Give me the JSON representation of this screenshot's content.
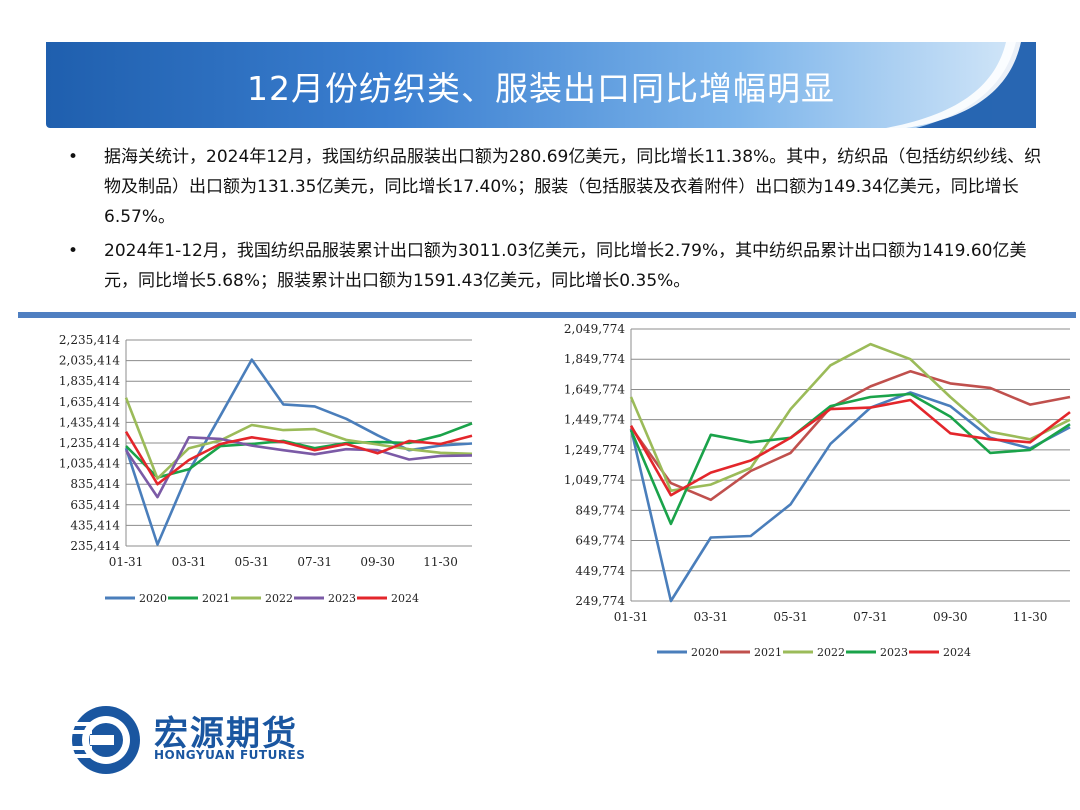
{
  "header": {
    "title": "12月份纺织类、服装出口同比增幅明显"
  },
  "bullets": [
    {
      "marker": "•",
      "text": "据海关统计，2024年12月，我国纺织品服装出口额为280.69亿美元，同比增长11.38%。其中，纺织品（包括纺织纱线、织物及制品）出口额为131.35亿美元，同比增长17.40%；服装（包括服装及衣着附件）出口额为149.34亿美元，同比增长6.57%。"
    },
    {
      "marker": "•",
      "text": "2024年1-12月，我国纺织品服装累计出口额为3011.03亿美元，同比增长2.79%，其中纺织品累计出口额为1419.60亿美元，同比增长5.68%；服装累计出口额为1591.43亿美元，同比增长0.35%。"
    }
  ],
  "logo": {
    "name": "宏源期货",
    "sub": "HONGYUAN FUTURES"
  },
  "colors": {
    "banner": "#1f5fae",
    "divider": "#4f7fc1",
    "brand": "#1a56a0"
  },
  "chart_data": [
    {
      "type": "line",
      "title": "",
      "xlabel": "",
      "ylabel": "",
      "x_ticks": [
        "01-31",
        "03-31",
        "05-31",
        "07-31",
        "09-30",
        "11-30"
      ],
      "y_ticks": [
        "2,235,414",
        "2,035,414",
        "1,835,414",
        "1,635,414",
        "1,435,414",
        "1,235,414",
        "1,035,414",
        "835,414",
        "635,414",
        "435,414",
        "235,414"
      ],
      "ylim": [
        235414,
        2235414
      ],
      "grid": true,
      "legend": "bottom",
      "categories": [
        "01",
        "02",
        "03",
        "04",
        "05",
        "06",
        "07",
        "08",
        "09",
        "10",
        "11",
        "12"
      ],
      "series": [
        {
          "name": "2020",
          "color": "#4a7ebb",
          "values": [
            1185414,
            250414,
            960414,
            1500414,
            2045414,
            1610414,
            1590414,
            1470414,
            1310414,
            1165414,
            1210414,
            1230414
          ]
        },
        {
          "name": "2021",
          "color": "#1aa34a",
          "values": [
            1205414,
            900414,
            980414,
            1205414,
            1225414,
            1255414,
            1185414,
            1235414,
            1245414,
            1235414,
            1310414,
            1425414
          ]
        },
        {
          "name": "2022",
          "color": "#9bbb59",
          "values": [
            1675414,
            890414,
            1185414,
            1260414,
            1410414,
            1360414,
            1370414,
            1265414,
            1220414,
            1175414,
            1140414,
            1130414
          ]
        },
        {
          "name": "2023",
          "color": "#7b5aa6",
          "values": [
            1165414,
            710414,
            1290414,
            1275414,
            1210414,
            1165414,
            1125414,
            1175414,
            1165414,
            1075414,
            1110414,
            1115414
          ]
        },
        {
          "name": "2024",
          "color": "#e3262b",
          "values": [
            1345414,
            835414,
            1070414,
            1225414,
            1290414,
            1245414,
            1165414,
            1225414,
            1135414,
            1255414,
            1225414,
            1305414
          ]
        }
      ]
    },
    {
      "type": "line",
      "title": "",
      "xlabel": "",
      "ylabel": "",
      "x_ticks": [
        "01-31",
        "03-31",
        "05-31",
        "07-31",
        "09-30",
        "11-30"
      ],
      "y_ticks": [
        "2,049,774",
        "1,849,774",
        "1,649,774",
        "1,449,774",
        "1,249,774",
        "1,049,774",
        "849,774",
        "649,774",
        "449,774",
        "249,774"
      ],
      "ylim": [
        249774,
        2049774
      ],
      "grid": true,
      "legend": "bottom",
      "categories": [
        "01",
        "02",
        "03",
        "04",
        "05",
        "06",
        "07",
        "08",
        "09",
        "10",
        "11",
        "12"
      ],
      "series": [
        {
          "name": "2020",
          "color": "#4a7ebb",
          "values": [
            1389774,
            249774,
            669774,
            679774,
            889774,
            1289774,
            1529774,
            1629774,
            1539774,
            1329774,
            1259774,
            1399774
          ]
        },
        {
          "name": "2021",
          "color": "#c0504d",
          "values": [
            1399774,
            1029774,
            919774,
            1109774,
            1229774,
            1529774,
            1669774,
            1769774,
            1689774,
            1659774,
            1549774,
            1599774
          ]
        },
        {
          "name": "2022",
          "color": "#9bbb59",
          "values": [
            1599774,
            979774,
            1019774,
            1129774,
            1519774,
            1809774,
            1949774,
            1849774,
            1599774,
            1369774,
            1319774,
            1449774
          ]
        },
        {
          "name": "2023",
          "color": "#1aa34a",
          "values": [
            1379774,
            759774,
            1349774,
            1299774,
            1329774,
            1539774,
            1599774,
            1619774,
            1469774,
            1229774,
            1249774,
            1419774
          ]
        },
        {
          "name": "2024",
          "color": "#e3262b",
          "values": [
            1409774,
            949774,
            1099774,
            1179774,
            1329774,
            1519774,
            1529774,
            1579774,
            1359774,
            1319774,
            1299774,
            1499774
          ]
        }
      ]
    }
  ]
}
